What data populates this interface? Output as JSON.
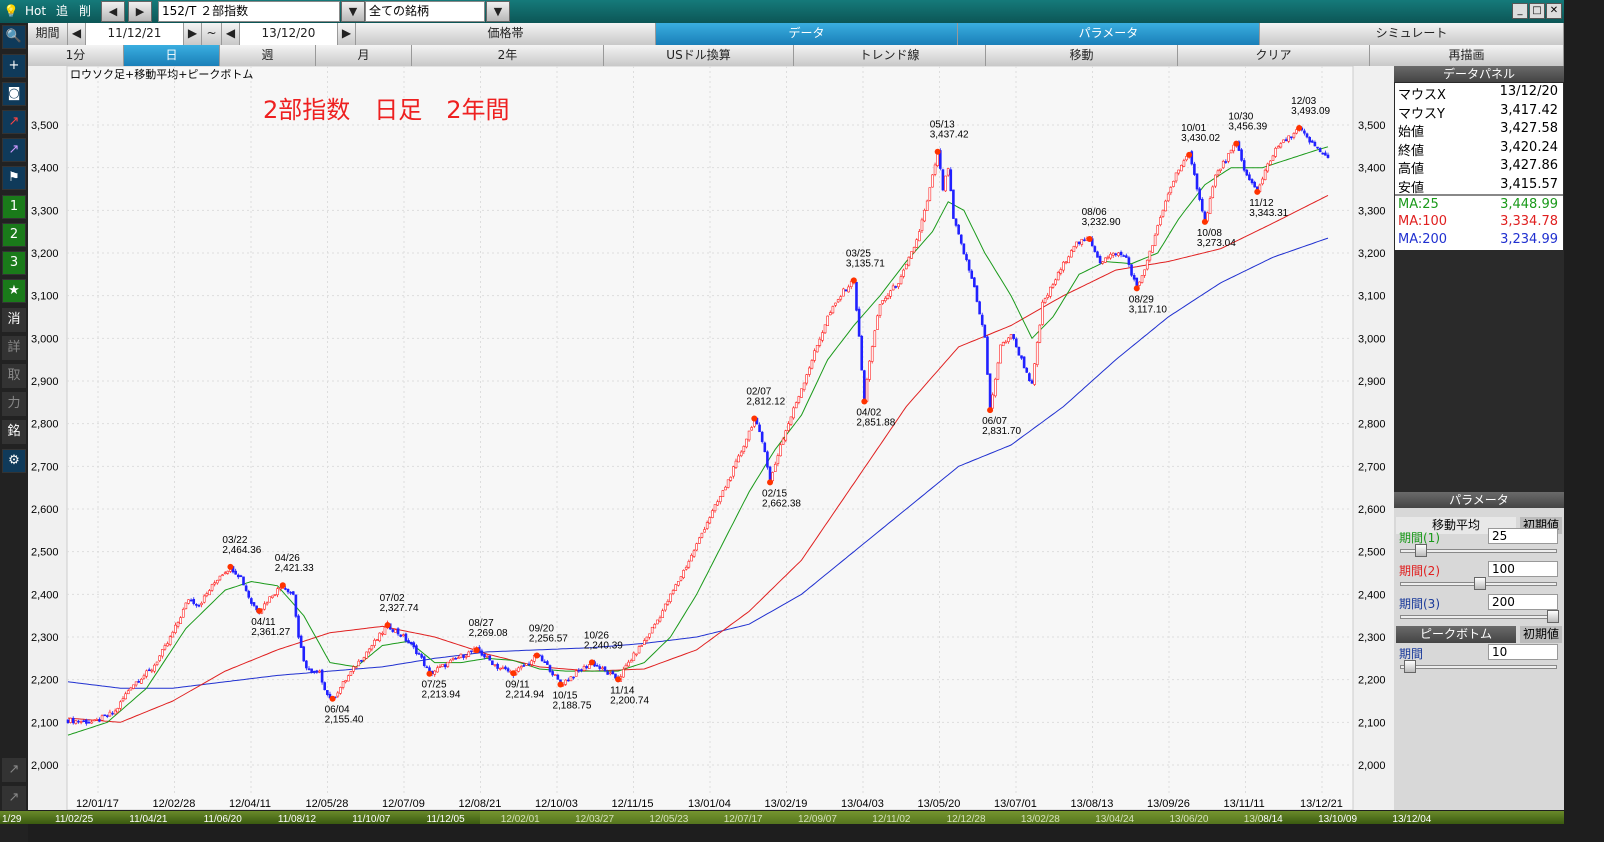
{
  "toolbar": {
    "hot": "Hot",
    "tsui": "追",
    "saku": "削",
    "symbol": "152/T ２部指数",
    "market": "全ての銘柄",
    "period_label": "期間",
    "date_from": "11/12/21",
    "tilde": "~",
    "date_to": "13/12/20"
  },
  "tabs": [
    "価格帯",
    "データ",
    "パラメータ",
    "シミュレート"
  ],
  "subtabs": [
    "1分",
    "日",
    "週",
    "月",
    "2年",
    "USドル換算",
    "トレンド線",
    "移動",
    "クリア",
    "再描画"
  ],
  "left_icons": [
    "search-icon",
    "plus-icon",
    "camera-icon",
    "chart-red-icon",
    "chart-purple-icon",
    "flag-icon",
    "1",
    "2",
    "3",
    "star-icon",
    "消",
    "詳",
    "取",
    "力",
    "銘",
    "gear-icon"
  ],
  "chart_data": {
    "type": "candlestick",
    "title": "ロウソク足+移動平均+ピークボトム",
    "annotation": "2部指数　日足　2年間",
    "ylim": [
      2000,
      3500
    ],
    "y_ticks": [
      "3,500",
      "3,400",
      "3,300",
      "3,200",
      "3,100",
      "3,000",
      "2,900",
      "2,800",
      "2,700",
      "2,600",
      "2,500",
      "2,400",
      "2,300",
      "2,200",
      "2,100",
      "2,000"
    ],
    "x_ticks": [
      "12/01/17",
      "12/02/28",
      "12/04/11",
      "12/05/28",
      "12/07/09",
      "12/08/21",
      "12/10/03",
      "12/11/15",
      "13/01/04",
      "13/02/19",
      "13/04/03",
      "13/05/20",
      "13/07/01",
      "13/08/13",
      "13/09/26",
      "13/11/11",
      "13/12/21"
    ],
    "bottom_dates": [
      "11/02/25",
      "11/04/21",
      "11/06/20",
      "11/08/12",
      "11/10/07",
      "11/12/05",
      "12/02/01",
      "12/03/27",
      "12/05/23",
      "12/07/17",
      "12/09/07",
      "12/11/02",
      "12/12/28",
      "13/02/28",
      "13/04/24",
      "13/06/20",
      "13/08/14",
      "13/10/09",
      "13/12/04"
    ],
    "bottom_prefix": "1/29",
    "price_path": [
      [
        0,
        2105
      ],
      [
        10,
        2100
      ],
      [
        18,
        2125
      ],
      [
        24,
        2185
      ],
      [
        32,
        2225
      ],
      [
        38,
        2285
      ],
      [
        42,
        2335
      ],
      [
        46,
        2390
      ],
      [
        50,
        2375
      ],
      [
        54,
        2410
      ],
      [
        58,
        2445
      ],
      [
        62,
        2464
      ],
      [
        66,
        2440
      ],
      [
        70,
        2380
      ],
      [
        73,
        2361
      ],
      [
        78,
        2400
      ],
      [
        82,
        2421
      ],
      [
        86,
        2400
      ],
      [
        88,
        2300
      ],
      [
        90,
        2240
      ],
      [
        93,
        2215
      ],
      [
        96,
        2215
      ],
      [
        99,
        2165
      ],
      [
        101,
        2155
      ],
      [
        106,
        2200
      ],
      [
        112,
        2250
      ],
      [
        118,
        2295
      ],
      [
        122,
        2328
      ],
      [
        128,
        2300
      ],
      [
        134,
        2260
      ],
      [
        138,
        2214
      ],
      [
        144,
        2235
      ],
      [
        150,
        2255
      ],
      [
        156,
        2270
      ],
      [
        160,
        2250
      ],
      [
        164,
        2230
      ],
      [
        170,
        2215
      ],
      [
        176,
        2240
      ],
      [
        179,
        2257
      ],
      [
        184,
        2225
      ],
      [
        188,
        2189
      ],
      [
        194,
        2215
      ],
      [
        200,
        2240
      ],
      [
        206,
        2215
      ],
      [
        210,
        2201
      ],
      [
        214,
        2240
      ],
      [
        220,
        2290
      ],
      [
        226,
        2350
      ],
      [
        232,
        2420
      ],
      [
        238,
        2490
      ],
      [
        244,
        2570
      ],
      [
        250,
        2640
      ],
      [
        256,
        2720
      ],
      [
        262,
        2812
      ],
      [
        266,
        2740
      ],
      [
        268,
        2662
      ],
      [
        272,
        2750
      ],
      [
        278,
        2850
      ],
      [
        284,
        2950
      ],
      [
        290,
        3050
      ],
      [
        296,
        3110
      ],
      [
        300,
        3136
      ],
      [
        302,
        3000
      ],
      [
        304,
        2852
      ],
      [
        306,
        2950
      ],
      [
        310,
        3080
      ],
      [
        314,
        3110
      ],
      [
        318,
        3140
      ],
      [
        324,
        3230
      ],
      [
        328,
        3320
      ],
      [
        332,
        3437
      ],
      [
        334,
        3350
      ],
      [
        336,
        3400
      ],
      [
        338,
        3280
      ],
      [
        342,
        3200
      ],
      [
        346,
        3120
      ],
      [
        350,
        3000
      ],
      [
        352,
        2832
      ],
      [
        356,
        2980
      ],
      [
        360,
        3010
      ],
      [
        364,
        2950
      ],
      [
        368,
        2890
      ],
      [
        372,
        3080
      ],
      [
        378,
        3150
      ],
      [
        384,
        3220
      ],
      [
        390,
        3233
      ],
      [
        394,
        3180
      ],
      [
        400,
        3200
      ],
      [
        404,
        3190
      ],
      [
        408,
        3117
      ],
      [
        412,
        3180
      ],
      [
        416,
        3260
      ],
      [
        420,
        3340
      ],
      [
        424,
        3400
      ],
      [
        428,
        3430
      ],
      [
        432,
        3330
      ],
      [
        434,
        3273
      ],
      [
        438,
        3380
      ],
      [
        442,
        3420
      ],
      [
        446,
        3456
      ],
      [
        450,
        3380
      ],
      [
        454,
        3343
      ],
      [
        458,
        3410
      ],
      [
        462,
        3450
      ],
      [
        466,
        3470
      ],
      [
        470,
        3493
      ],
      [
        474,
        3460
      ],
      [
        478,
        3440
      ],
      [
        481,
        3420
      ]
    ],
    "ma25": [
      [
        0,
        2070
      ],
      [
        15,
        2100
      ],
      [
        30,
        2180
      ],
      [
        45,
        2320
      ],
      [
        60,
        2410
      ],
      [
        70,
        2430
      ],
      [
        80,
        2420
      ],
      [
        90,
        2350
      ],
      [
        100,
        2240
      ],
      [
        110,
        2230
      ],
      [
        120,
        2280
      ],
      [
        130,
        2290
      ],
      [
        140,
        2240
      ],
      [
        150,
        2240
      ],
      [
        160,
        2250
      ],
      [
        170,
        2245
      ],
      [
        180,
        2225
      ],
      [
        190,
        2220
      ],
      [
        200,
        2220
      ],
      [
        210,
        2220
      ],
      [
        220,
        2240
      ],
      [
        230,
        2300
      ],
      [
        240,
        2400
      ],
      [
        250,
        2520
      ],
      [
        260,
        2640
      ],
      [
        270,
        2740
      ],
      [
        280,
        2820
      ],
      [
        290,
        2950
      ],
      [
        300,
        3030
      ],
      [
        310,
        3100
      ],
      [
        320,
        3180
      ],
      [
        330,
        3250
      ],
      [
        336,
        3320
      ],
      [
        342,
        3300
      ],
      [
        350,
        3200
      ],
      [
        360,
        3100
      ],
      [
        368,
        3000
      ],
      [
        376,
        3050
      ],
      [
        386,
        3150
      ],
      [
        396,
        3180
      ],
      [
        406,
        3175
      ],
      [
        416,
        3200
      ],
      [
        424,
        3280
      ],
      [
        434,
        3360
      ],
      [
        444,
        3400
      ],
      [
        456,
        3400
      ],
      [
        466,
        3420
      ],
      [
        476,
        3440
      ],
      [
        481,
        3449
      ]
    ],
    "ma100": [
      [
        0,
        2110
      ],
      [
        20,
        2100
      ],
      [
        40,
        2150
      ],
      [
        60,
        2220
      ],
      [
        80,
        2270
      ],
      [
        100,
        2310
      ],
      [
        120,
        2325
      ],
      [
        140,
        2300
      ],
      [
        160,
        2260
      ],
      [
        180,
        2230
      ],
      [
        200,
        2220
      ],
      [
        220,
        2225
      ],
      [
        240,
        2270
      ],
      [
        260,
        2360
      ],
      [
        280,
        2480
      ],
      [
        300,
        2660
      ],
      [
        320,
        2840
      ],
      [
        340,
        2980
      ],
      [
        360,
        3030
      ],
      [
        380,
        3100
      ],
      [
        400,
        3160
      ],
      [
        420,
        3180
      ],
      [
        440,
        3210
      ],
      [
        460,
        3270
      ],
      [
        481,
        3335
      ]
    ],
    "ma200": [
      [
        0,
        2195
      ],
      [
        20,
        2180
      ],
      [
        40,
        2180
      ],
      [
        60,
        2195
      ],
      [
        80,
        2210
      ],
      [
        100,
        2220
      ],
      [
        120,
        2230
      ],
      [
        140,
        2250
      ],
      [
        160,
        2265
      ],
      [
        180,
        2270
      ],
      [
        200,
        2275
      ],
      [
        220,
        2285
      ],
      [
        240,
        2300
      ],
      [
        260,
        2330
      ],
      [
        280,
        2400
      ],
      [
        300,
        2500
      ],
      [
        320,
        2600
      ],
      [
        340,
        2700
      ],
      [
        360,
        2750
      ],
      [
        380,
        2840
      ],
      [
        400,
        2950
      ],
      [
        420,
        3050
      ],
      [
        440,
        3130
      ],
      [
        460,
        3190
      ],
      [
        481,
        3235
      ]
    ],
    "peaks": [
      {
        "i": 62,
        "d": "03/22",
        "v": "2,464.36",
        "up": true
      },
      {
        "i": 73,
        "d": "04/11",
        "v": "2,361.27",
        "up": false
      },
      {
        "i": 82,
        "d": "04/26",
        "v": "2,421.33",
        "up": true
      },
      {
        "i": 101,
        "d": "06/04",
        "v": "2,155.40",
        "up": false
      },
      {
        "i": 122,
        "d": "07/02",
        "v": "2,327.74",
        "up": true
      },
      {
        "i": 138,
        "d": "07/25",
        "v": "2,213.94",
        "up": false
      },
      {
        "i": 156,
        "d": "08/27",
        "v": "2,269.08",
        "up": true
      },
      {
        "i": 170,
        "d": "09/11",
        "v": "2,214.94",
        "up": false
      },
      {
        "i": 179,
        "d": "09/20",
        "v": "2,256.57",
        "up": true
      },
      {
        "i": 188,
        "d": "10/15",
        "v": "2,188.75",
        "up": false
      },
      {
        "i": 200,
        "d": "10/26",
        "v": "2,240.39",
        "up": true
      },
      {
        "i": 210,
        "d": "11/14",
        "v": "2,200.74",
        "up": false
      },
      {
        "i": 262,
        "d": "02/07",
        "v": "2,812.12",
        "up": true
      },
      {
        "i": 268,
        "d": "02/15",
        "v": "2,662.38",
        "up": false
      },
      {
        "i": 300,
        "d": "03/25",
        "v": "3,135.71",
        "up": true
      },
      {
        "i": 304,
        "d": "04/02",
        "v": "2,851.88",
        "up": false
      },
      {
        "i": 332,
        "d": "05/13",
        "v": "3,437.42",
        "up": true
      },
      {
        "i": 352,
        "d": "06/07",
        "v": "2,831.70",
        "up": false
      },
      {
        "i": 390,
        "d": "08/06",
        "v": "3,232.90",
        "up": true
      },
      {
        "i": 408,
        "d": "08/29",
        "v": "3,117.10",
        "up": false
      },
      {
        "i": 428,
        "d": "10/01",
        "v": "3,430.02",
        "up": true
      },
      {
        "i": 434,
        "d": "10/08",
        "v": "3,273.04",
        "up": false
      },
      {
        "i": 446,
        "d": "10/30",
        "v": "3,456.39",
        "up": true
      },
      {
        "i": 454,
        "d": "11/12",
        "v": "3,343.31",
        "up": false
      },
      {
        "i": 470,
        "d": "12/03",
        "v": "3,493.09",
        "up": true
      }
    ],
    "colors": {
      "up": "#ff2020",
      "down": "#2020ff",
      "ma25": "#1a9a1a",
      "ma100": "#e02020",
      "ma200": "#2030d0",
      "marker": "#ff3300"
    }
  },
  "data_panel": {
    "title": "データパネル",
    "rows": [
      {
        "k": "マウスX",
        "v": "13/12/20"
      },
      {
        "k": "マウスY",
        "v": "3,417.42"
      },
      {
        "k": "始値",
        "v": "3,427.58"
      },
      {
        "k": "終値",
        "v": "3,420.24"
      },
      {
        "k": "高値",
        "v": "3,427.86"
      },
      {
        "k": "安値",
        "v": "3,415.57"
      }
    ],
    "ma_rows": [
      {
        "k": "MA:25",
        "v": "3,448.99",
        "c": "#1a9a1a"
      },
      {
        "k": "MA:100",
        "v": "3,334.78",
        "c": "#e02020"
      },
      {
        "k": "MA:200",
        "v": "3,234.99",
        "c": "#2030d0"
      }
    ]
  },
  "param_panel": {
    "title": "パラメータ",
    "tab1": "移動平均",
    "tab2": "初期値",
    "p1": "期間(1)",
    "p1v": "25",
    "p2": "期間(2)",
    "p2v": "100",
    "p3": "期間(3)",
    "p3v": "200",
    "pb_title": "ピークボトム",
    "pb_reset": "初期値",
    "pb_label": "期間",
    "pb_val": "10"
  }
}
